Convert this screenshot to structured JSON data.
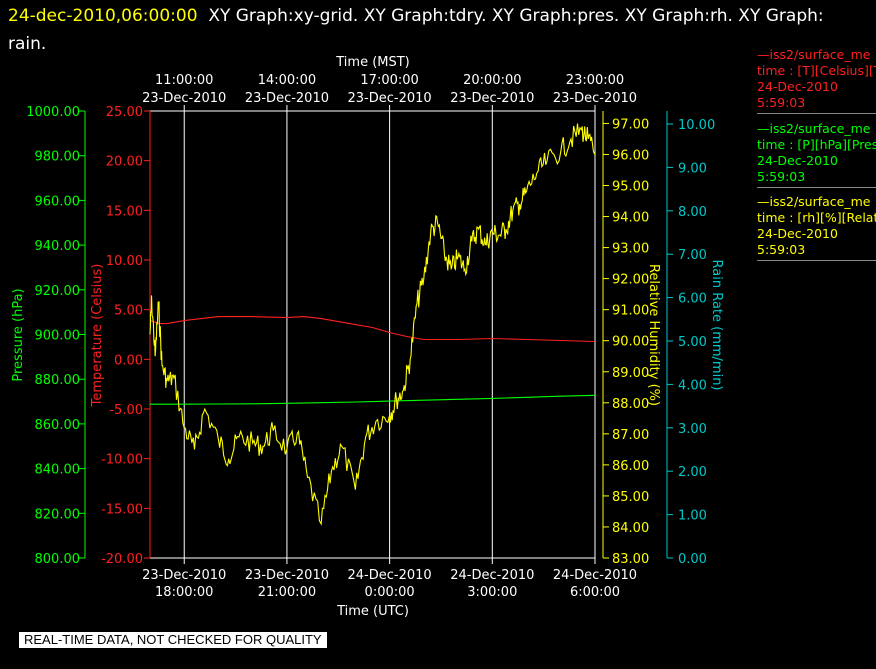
{
  "header": {
    "timestamp": "24-dec-2010,06:00:00",
    "graphs": "XY Graph:xy-grid.  XY Graph:tdry.  XY Graph:pres.  XY Graph:rh.  XY Graph: rain."
  },
  "legend": [
    {
      "line1": "—iss2/surface_me",
      "line2": "time : [T][Celsius][T",
      "line3": "24-Dec-2010",
      "line4": "5:59:03",
      "color": "#ff2020"
    },
    {
      "line1": "—iss2/surface_me",
      "line2": "time : [P][hPa][Pres",
      "line3": "24-Dec-2010",
      "line4": "5:59:03",
      "color": "#00ff00"
    },
    {
      "line1": "—iss2/surface_me",
      "line2": "time : [rh][%][Relati",
      "line3": "24-Dec-2010",
      "line4": "5:59:03",
      "color": "#ffff00"
    }
  ],
  "footer": {
    "quality_note": "REAL-TIME DATA, NOT CHECKED FOR QUALITY"
  },
  "chart_data": {
    "type": "line",
    "grid": true,
    "x_top_label": "Time (MST)",
    "x_bottom_label": "Time (UTC)",
    "x_range_utc_hours": [
      17,
      30
    ],
    "top_ticks": [
      {
        "line1": "11:00:00",
        "line2": "23-Dec-2010"
      },
      {
        "line1": "14:00:00",
        "line2": "23-Dec-2010"
      },
      {
        "line1": "17:00:00",
        "line2": "23-Dec-2010"
      },
      {
        "line1": "20:00:00",
        "line2": "23-Dec-2010"
      },
      {
        "line1": "23:00:00",
        "line2": "23-Dec-2010"
      }
    ],
    "bottom_ticks": [
      {
        "line1": "23-Dec-2010",
        "line2": "18:00:00"
      },
      {
        "line1": "23-Dec-2010",
        "line2": "21:00:00"
      },
      {
        "line1": "24-Dec-2010",
        "line2": "0:00:00"
      },
      {
        "line1": "24-Dec-2010",
        "line2": "3:00:00"
      },
      {
        "line1": "24-Dec-2010",
        "line2": "6:00:00"
      }
    ],
    "axes": {
      "pressure": {
        "label": "Pressure (hPa)",
        "color": "#00ff00",
        "range": [
          800,
          1000
        ],
        "ticks": [
          "800.00",
          "820.00",
          "840.00",
          "860.00",
          "880.00",
          "900.00",
          "920.00",
          "940.00",
          "960.00",
          "980.00",
          "1000.00"
        ]
      },
      "temperature": {
        "label": "Temperature (Celsius)",
        "color": "#ff2020",
        "range": [
          -20,
          25
        ],
        "ticks": [
          "-20.00",
          "-15.00",
          "-10.00",
          "-5.00",
          "0.00",
          "5.00",
          "10.00",
          "15.00",
          "20.00",
          "25.00"
        ]
      },
      "humidity": {
        "label": "Relative Humidity (%)",
        "color": "#ffff00",
        "range": [
          83,
          97.4
        ],
        "ticks": [
          "83.00",
          "84.00",
          "85.00",
          "86.00",
          "87.00",
          "88.00",
          "89.00",
          "90.00",
          "91.00",
          "92.00",
          "93.00",
          "94.00",
          "95.00",
          "96.00",
          "97.00"
        ]
      },
      "rain": {
        "label": "Rain Rate (mm/min)",
        "color": "#00c8c8",
        "range": [
          0,
          10.3
        ],
        "ticks": [
          "0.00",
          "1.00",
          "2.00",
          "3.00",
          "4.00",
          "5.00",
          "6.00",
          "7.00",
          "8.00",
          "9.00",
          "10.00"
        ]
      }
    },
    "series": [
      {
        "name": "iss2/surface_me time : [T][Celsius][T",
        "axis": "temperature",
        "color": "#ff2020",
        "x": [
          17.0,
          17.3,
          17.5,
          18.0,
          19.0,
          20.0,
          21.0,
          21.5,
          22.0,
          22.5,
          23.0,
          23.5,
          24.0,
          24.5,
          25.0,
          26.0,
          27.0,
          28.0,
          29.0,
          30.0
        ],
        "y": [
          3.9,
          3.6,
          3.6,
          3.9,
          4.3,
          4.3,
          4.2,
          4.3,
          4.1,
          3.8,
          3.5,
          3.2,
          2.7,
          2.3,
          2.0,
          2.0,
          2.1,
          2.0,
          1.9,
          1.8
        ]
      },
      {
        "name": "iss2/surface_me time : [P][hPa][Pres",
        "axis": "pressure",
        "color": "#00ff00",
        "x": [
          17.0,
          18.0,
          19.0,
          20.0,
          21.0,
          22.0,
          23.0,
          24.0,
          25.0,
          26.0,
          27.0,
          28.0,
          29.0,
          30.0
        ],
        "y": [
          868.8,
          868.8,
          868.9,
          869.0,
          869.2,
          869.5,
          869.8,
          870.2,
          870.6,
          871.0,
          871.4,
          871.9,
          872.4,
          872.8
        ]
      },
      {
        "name": "iss2/surface_me time : [rh][%][Relati",
        "axis": "humidity",
        "color": "#ffff00",
        "x": [
          17.0,
          17.05,
          17.15,
          17.25,
          17.35,
          17.5,
          17.7,
          18.0,
          18.3,
          18.6,
          19.0,
          19.3,
          19.6,
          20.0,
          20.3,
          20.6,
          21.0,
          21.3,
          21.6,
          22.0,
          22.3,
          22.6,
          23.0,
          23.3,
          23.6,
          24.0,
          24.2,
          24.4,
          24.6,
          24.8,
          25.0,
          25.2,
          25.4,
          25.6,
          25.8,
          26.0,
          26.2,
          26.4,
          26.6,
          26.8,
          27.0,
          27.2,
          27.4,
          27.6,
          27.8,
          28.0,
          28.3,
          28.6,
          29.0,
          29.3,
          29.6,
          29.8,
          30.0
        ],
        "y": [
          90.2,
          91.3,
          89.5,
          91.2,
          89.2,
          88.7,
          88.8,
          87.2,
          86.5,
          87.8,
          86.8,
          86.2,
          86.9,
          86.7,
          86.6,
          87.1,
          86.5,
          87.0,
          85.6,
          84.1,
          85.8,
          86.6,
          85.2,
          86.9,
          87.4,
          87.6,
          88.1,
          88.4,
          89.4,
          91.2,
          92.0,
          93.5,
          93.8,
          92.8,
          92.3,
          92.7,
          92.3,
          93.2,
          93.6,
          93.1,
          93.5,
          93.4,
          93.6,
          94.2,
          94.4,
          94.8,
          95.4,
          95.8,
          96.1,
          96.5,
          96.8,
          96.5,
          96.0
        ]
      }
    ]
  }
}
